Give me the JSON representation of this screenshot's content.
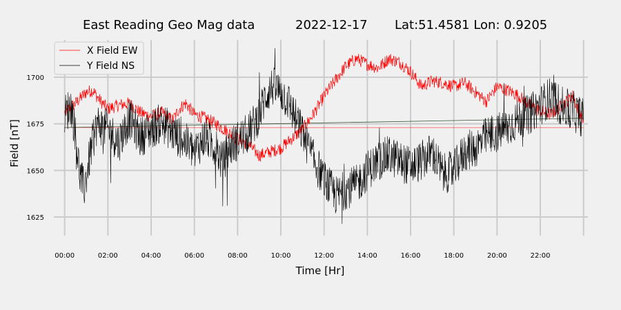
{
  "chart_data": {
    "type": "line",
    "title": {
      "name": "East Reading Geo Mag data",
      "date": "2022-12-17",
      "location": "Lat:51.4581  Lon: 0.9205"
    },
    "xlabel": "Time  [Hr]",
    "ylabel": "Field  [nT]",
    "xlim_hours": [
      -0.5,
      24.2
    ],
    "ylim": [
      1615,
      1720
    ],
    "x_ticks": [
      "00:00",
      "02:00",
      "04:00",
      "06:00",
      "08:00",
      "10:00",
      "12:00",
      "14:00",
      "16:00",
      "18:00",
      "20:00",
      "22:00"
    ],
    "x_tick_hours": [
      0,
      2,
      4,
      6,
      8,
      10,
      12,
      14,
      16,
      18,
      20,
      22,
      24
    ],
    "y_ticks": [
      1625,
      1650,
      1675,
      1700
    ],
    "grid": true,
    "legend_position": "top-left",
    "series": [
      {
        "name": "X Field EW",
        "color": "#ff0000",
        "hours": [
          0,
          0.5,
          1,
          1.3,
          1.6,
          2,
          2.5,
          3,
          3.5,
          4,
          4.5,
          5,
          5.3,
          5.6,
          6,
          6.5,
          7,
          7.5,
          8,
          8.5,
          9,
          9.5,
          10,
          10.5,
          11,
          11.5,
          12,
          12.5,
          13,
          13.5,
          14,
          14.5,
          15,
          15.5,
          16,
          16.5,
          17,
          17.5,
          18,
          18.5,
          19,
          19.5,
          20,
          20.5,
          21,
          21.5,
          22,
          22.5,
          23,
          23.5,
          24
        ],
        "values": [
          1681,
          1686,
          1692,
          1693,
          1688,
          1683,
          1685,
          1686,
          1681,
          1679,
          1681,
          1677,
          1683,
          1686,
          1680,
          1678,
          1675,
          1671,
          1667,
          1664,
          1658,
          1660,
          1662,
          1667,
          1672,
          1680,
          1690,
          1698,
          1706,
          1710,
          1707,
          1705,
          1710,
          1708,
          1703,
          1695,
          1698,
          1697,
          1695,
          1697,
          1692,
          1687,
          1695,
          1693,
          1690,
          1685,
          1682,
          1680,
          1685,
          1690,
          1676
        ],
        "baseline": 1673
      },
      {
        "name": "Y Field NS",
        "color": "#000000",
        "hours": [
          0,
          0.3,
          0.5,
          0.7,
          0.9,
          1.2,
          1.5,
          2,
          2.5,
          3,
          3.5,
          4,
          4.5,
          5,
          5.5,
          6,
          6.5,
          7,
          7.3,
          7.6,
          8,
          8.5,
          9,
          9.3,
          9.6,
          10,
          10.3,
          10.6,
          11,
          11.5,
          12,
          12.3,
          12.6,
          13,
          13.5,
          14,
          14.5,
          15,
          15.5,
          16,
          16.5,
          17,
          17.5,
          18,
          18.5,
          19,
          19.5,
          20,
          20.5,
          21,
          21.5,
          22,
          22.5,
          23,
          23.5,
          24
        ],
        "values": [
          1680,
          1685,
          1670,
          1648,
          1640,
          1660,
          1675,
          1672,
          1665,
          1678,
          1668,
          1672,
          1676,
          1670,
          1666,
          1660,
          1668,
          1662,
          1654,
          1662,
          1666,
          1670,
          1680,
          1690,
          1695,
          1692,
          1688,
          1680,
          1670,
          1656,
          1645,
          1640,
          1636,
          1640,
          1642,
          1650,
          1655,
          1658,
          1655,
          1652,
          1655,
          1660,
          1648,
          1650,
          1660,
          1662,
          1668,
          1670,
          1673,
          1678,
          1680,
          1685,
          1690,
          1684,
          1682,
          1678
        ],
        "baseline_start": 1673,
        "baseline_end": 1678
      }
    ]
  }
}
